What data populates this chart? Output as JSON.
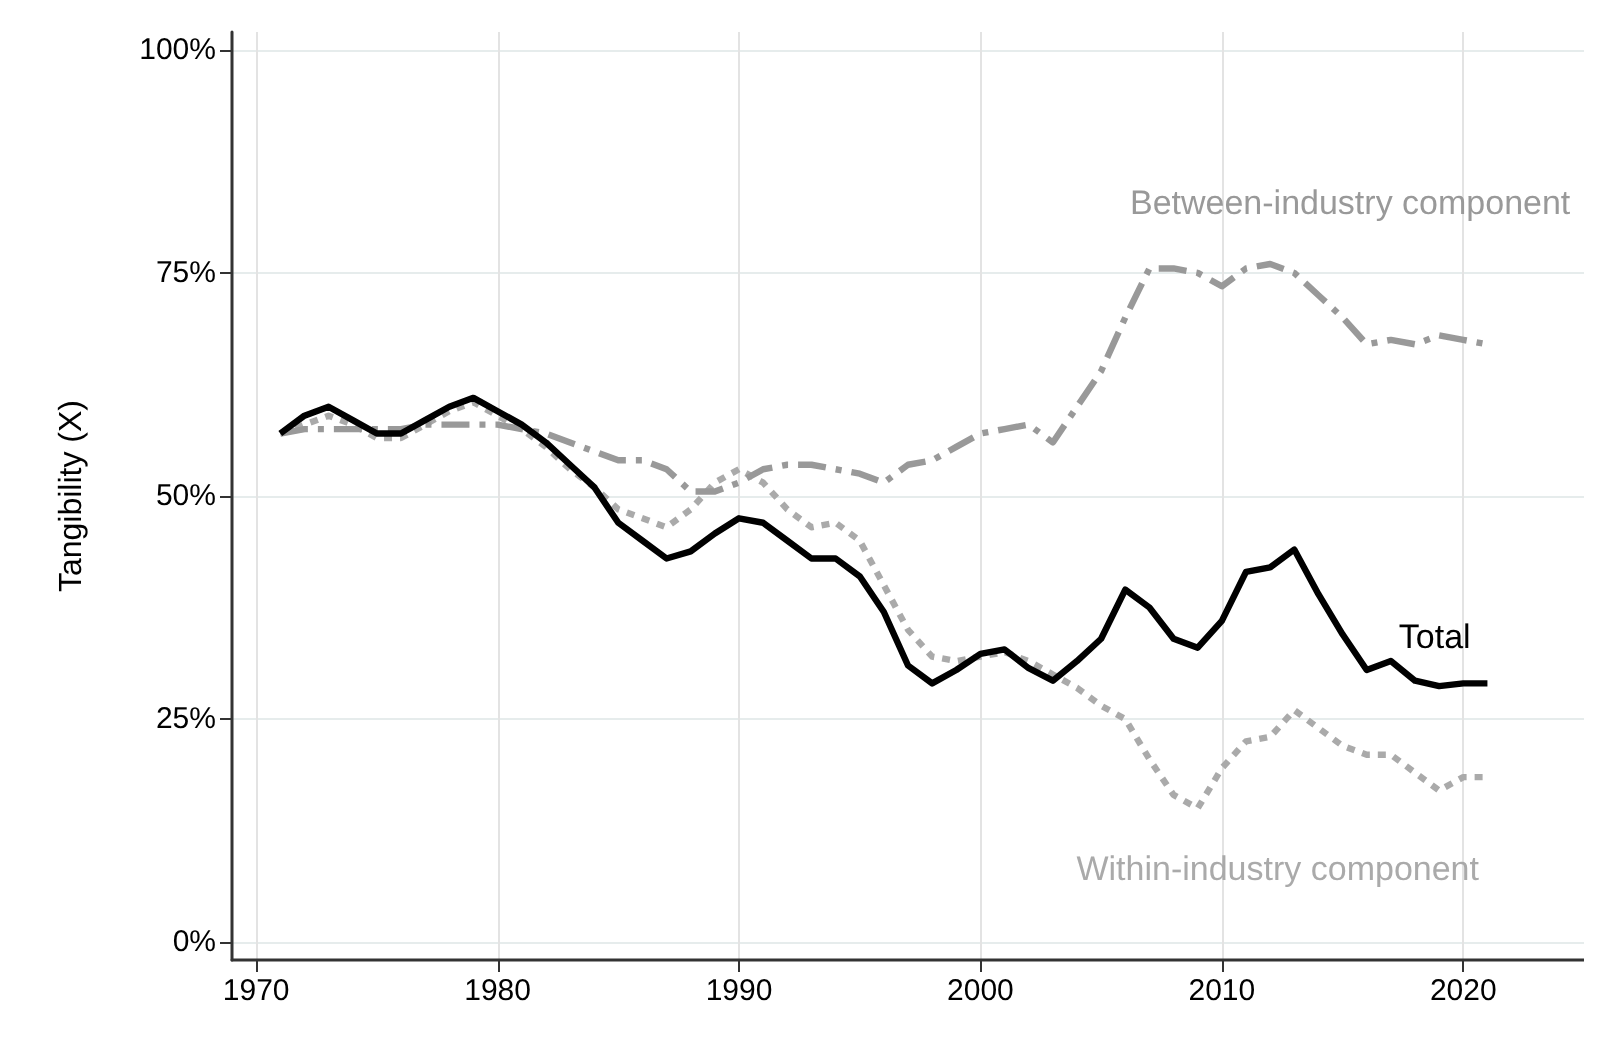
{
  "chart_data": {
    "type": "line",
    "ylabel": "Tangibility (X)",
    "x": [
      1971,
      1972,
      1973,
      1974,
      1975,
      1976,
      1977,
      1978,
      1979,
      1980,
      1981,
      1982,
      1983,
      1984,
      1985,
      1986,
      1987,
      1988,
      1989,
      1990,
      1991,
      1992,
      1993,
      1994,
      1995,
      1996,
      1997,
      1998,
      1999,
      2000,
      2001,
      2002,
      2003,
      2004,
      2005,
      2006,
      2007,
      2008,
      2009,
      2010,
      2011,
      2012,
      2013,
      2014,
      2015,
      2016,
      2017,
      2018,
      2019,
      2020,
      2021
    ],
    "series": [
      {
        "name": "Total",
        "color": "#000000",
        "line_style": "solid",
        "values": [
          57,
          59,
          60,
          58.5,
          57,
          57,
          58.5,
          60,
          61,
          59.5,
          58,
          56,
          53.5,
          51,
          47,
          45,
          43,
          43.8,
          45.8,
          47.5,
          47,
          45,
          43,
          43,
          41,
          37,
          31,
          29,
          30.5,
          32.3,
          32.8,
          30.7,
          29.3,
          31.5,
          34,
          39.5,
          37.5,
          34,
          33,
          36,
          41.5,
          42,
          44,
          39,
          34.5,
          30.5,
          31.5,
          29.3,
          28.7,
          29,
          29
        ]
      },
      {
        "name": "Between-industry component",
        "color": "#999999",
        "line_style": "dashed",
        "values": [
          57,
          57.5,
          57.5,
          57.5,
          57.5,
          57.5,
          58,
          58,
          58,
          58,
          57.5,
          57,
          56,
          55,
          54,
          54,
          53,
          50.5,
          50.5,
          51.5,
          53,
          53.5,
          53.5,
          53,
          52.5,
          51.5,
          53.5,
          54,
          55.5,
          57,
          57.5,
          58,
          56,
          60,
          64,
          70,
          75.5,
          75.5,
          75,
          73.5,
          75.5,
          76,
          75,
          72.5,
          70,
          67,
          67.5,
          67,
          68,
          67.5,
          67
        ]
      },
      {
        "name": "Within-industry component",
        "color": "#aaaaaa",
        "line_style": "dotted",
        "values": [
          57,
          58,
          59,
          58,
          56.5,
          56.5,
          58,
          59.5,
          60.5,
          59,
          57.5,
          55.5,
          53,
          51,
          48.5,
          47.5,
          46.5,
          48.5,
          51.5,
          53,
          51.5,
          48.5,
          46.5,
          47,
          45,
          40,
          35,
          32,
          31.5,
          32,
          32.5,
          31.5,
          30,
          28.5,
          26.5,
          25,
          20.5,
          16.5,
          15,
          19.5,
          22.5,
          23,
          26,
          24,
          22,
          21,
          21,
          19,
          17,
          18.5,
          18.5
        ]
      }
    ],
    "xlim": [
      1969,
      2025
    ],
    "xticks": [
      1970,
      1980,
      1990,
      2000,
      2010,
      2020
    ],
    "ylim": [
      -2,
      102
    ],
    "yticks": [
      {
        "value": 0,
        "label": "0%"
      },
      {
        "value": 25,
        "label": "25%"
      },
      {
        "value": 50,
        "label": "50%"
      },
      {
        "value": 75,
        "label": "75%"
      },
      {
        "value": 100,
        "label": "100%"
      }
    ],
    "grid": true,
    "marker": "none"
  }
}
